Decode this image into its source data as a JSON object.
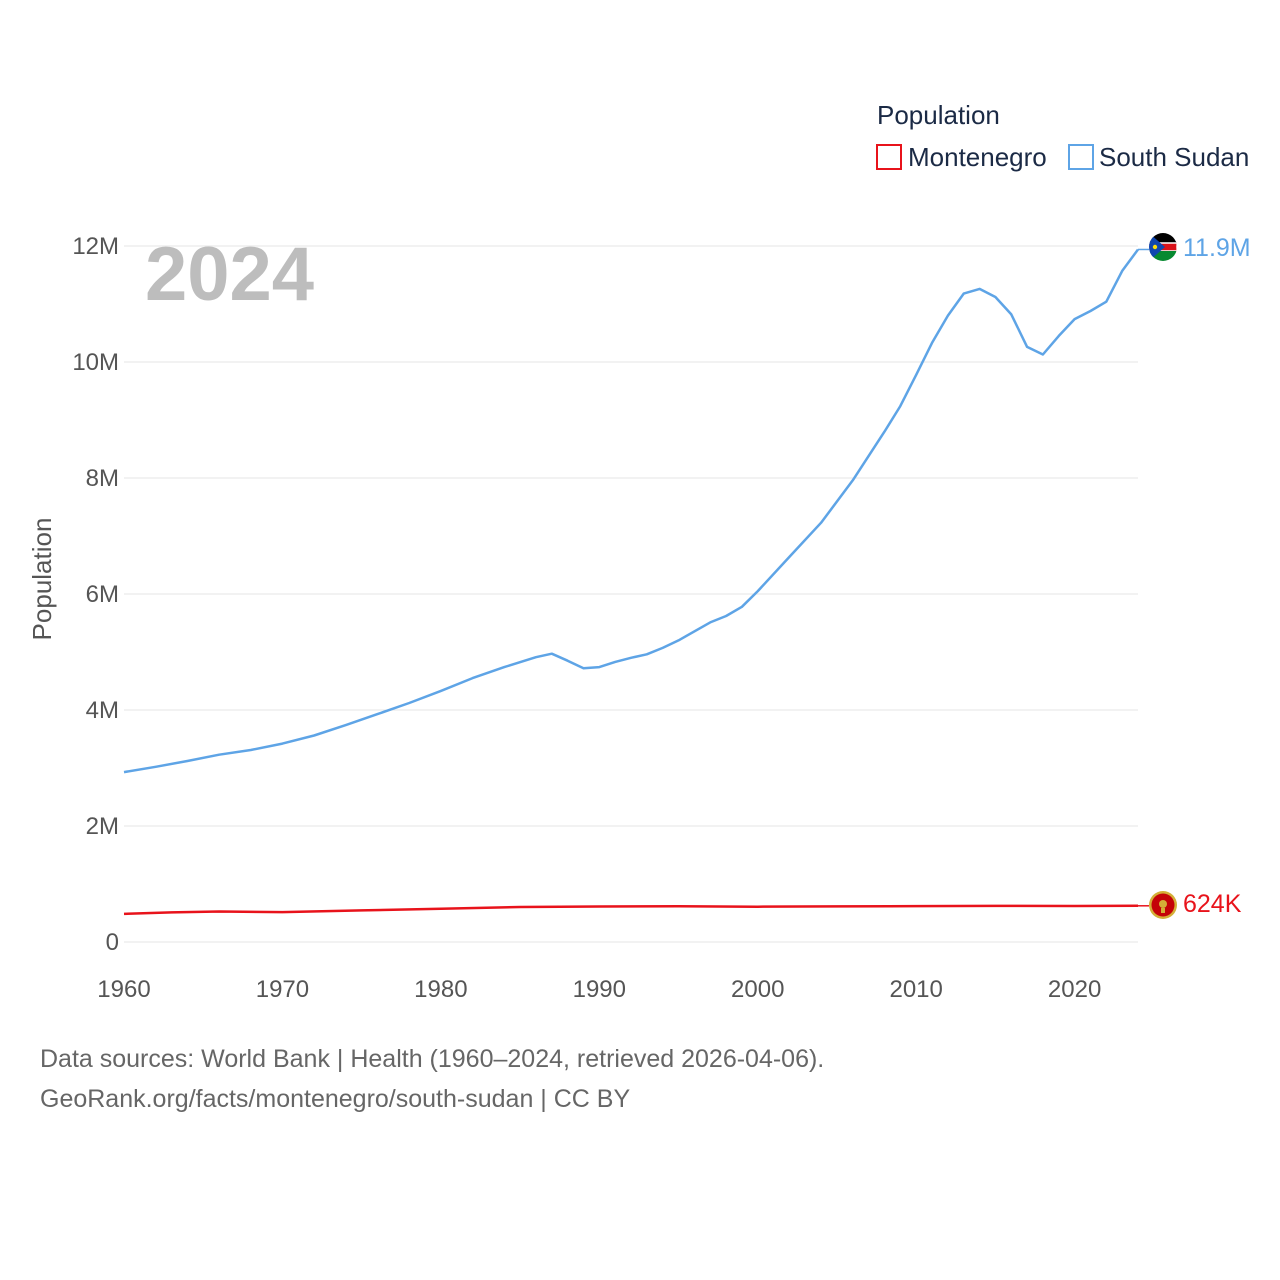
{
  "chart_data": {
    "type": "line",
    "title": "Population",
    "ylabel": "Population",
    "xlabel": "",
    "year_label": "2024",
    "ylim": [
      0,
      12000000
    ],
    "xlim": [
      1960,
      2024
    ],
    "y_ticks": [
      {
        "value": 0,
        "label": "0"
      },
      {
        "value": 2000000,
        "label": "2M"
      },
      {
        "value": 4000000,
        "label": "4M"
      },
      {
        "value": 6000000,
        "label": "6M"
      },
      {
        "value": 8000000,
        "label": "8M"
      },
      {
        "value": 10000000,
        "label": "10M"
      },
      {
        "value": 12000000,
        "label": "12M"
      }
    ],
    "x_ticks": [
      {
        "value": 1960,
        "label": "1960"
      },
      {
        "value": 1970,
        "label": "1970"
      },
      {
        "value": 1980,
        "label": "1980"
      },
      {
        "value": 1990,
        "label": "1990"
      },
      {
        "value": 2000,
        "label": "2000"
      },
      {
        "value": 2010,
        "label": "2010"
      },
      {
        "value": 2020,
        "label": "2020"
      }
    ],
    "grid": true,
    "legend": {
      "title": "Population",
      "position": "top-right"
    },
    "series": [
      {
        "name": "Montenegro",
        "color": "#e8131b",
        "end_label": "624K",
        "flag_icon": "montenegro-flag-icon",
        "points": [
          [
            1960,
            484000
          ],
          [
            1963,
            510000
          ],
          [
            1966,
            525000
          ],
          [
            1970,
            516000
          ],
          [
            1975,
            545000
          ],
          [
            1980,
            572000
          ],
          [
            1985,
            604000
          ],
          [
            1990,
            612000
          ],
          [
            1995,
            615000
          ],
          [
            2000,
            609000
          ],
          [
            2005,
            614000
          ],
          [
            2010,
            619000
          ],
          [
            2015,
            622000
          ],
          [
            2020,
            621000
          ],
          [
            2024,
            624000
          ]
        ]
      },
      {
        "name": "South Sudan",
        "color": "#5ea4e6",
        "end_label": "11.9M",
        "flag_icon": "south-sudan-flag-icon",
        "points": [
          [
            1960,
            2930000
          ],
          [
            1962,
            3020000
          ],
          [
            1964,
            3120000
          ],
          [
            1966,
            3230000
          ],
          [
            1968,
            3310000
          ],
          [
            1970,
            3420000
          ],
          [
            1972,
            3560000
          ],
          [
            1974,
            3740000
          ],
          [
            1976,
            3930000
          ],
          [
            1978,
            4120000
          ],
          [
            1980,
            4330000
          ],
          [
            1982,
            4550000
          ],
          [
            1984,
            4740000
          ],
          [
            1986,
            4910000
          ],
          [
            1987,
            4970000
          ],
          [
            1988,
            4850000
          ],
          [
            1989,
            4720000
          ],
          [
            1990,
            4740000
          ],
          [
            1991,
            4830000
          ],
          [
            1992,
            4900000
          ],
          [
            1993,
            4960000
          ],
          [
            1994,
            5070000
          ],
          [
            1995,
            5200000
          ],
          [
            1997,
            5510000
          ],
          [
            1998,
            5620000
          ],
          [
            1999,
            5780000
          ],
          [
            2000,
            6050000
          ],
          [
            2002,
            6640000
          ],
          [
            2004,
            7230000
          ],
          [
            2006,
            7960000
          ],
          [
            2008,
            8800000
          ],
          [
            2009,
            9240000
          ],
          [
            2010,
            9780000
          ],
          [
            2011,
            10330000
          ],
          [
            2012,
            10800000
          ],
          [
            2013,
            11180000
          ],
          [
            2014,
            11260000
          ],
          [
            2015,
            11120000
          ],
          [
            2016,
            10820000
          ],
          [
            2017,
            10260000
          ],
          [
            2018,
            10130000
          ],
          [
            2019,
            10450000
          ],
          [
            2020,
            10740000
          ],
          [
            2021,
            10880000
          ],
          [
            2022,
            11040000
          ],
          [
            2023,
            11570000
          ],
          [
            2024,
            11940000
          ]
        ]
      }
    ]
  },
  "footer": {
    "line1": "Data sources: World Bank | Health (1960–2024, retrieved 2026-04-06).",
    "line2": "GeoRank.org/facts/montenegro/south-sudan | CC BY"
  }
}
